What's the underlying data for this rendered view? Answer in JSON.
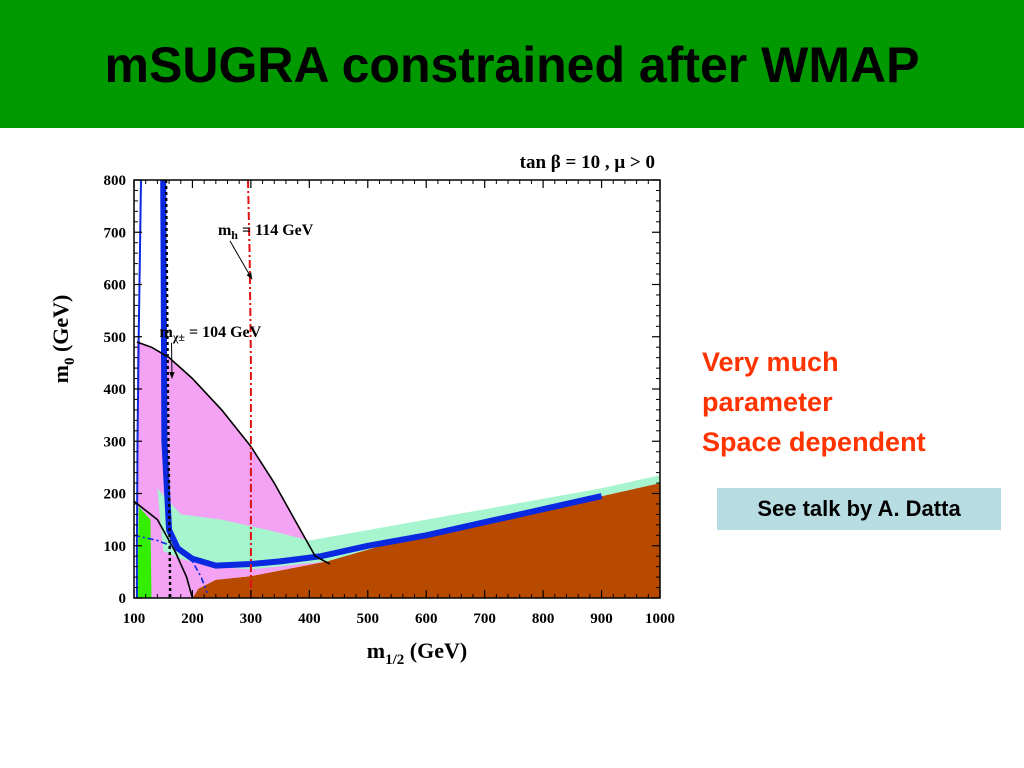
{
  "slide": {
    "title": "mSUGRA constrained after WMAP",
    "note_lines": [
      "Very much",
      "parameter",
      "Space dependent"
    ],
    "callout": "See talk by A. Datta"
  },
  "colors": {
    "header": "#009900",
    "note": "#ff3300",
    "callout_bg": "#b7dde3",
    "excluded": "#b84a00",
    "pink": "#f4a3f4",
    "mint": "#a6f5cf",
    "green": "#33ee00",
    "blue": "#0a28e0",
    "red": "#e01010"
  },
  "chart_data": {
    "type": "area",
    "title": "tan β = 10 ,  μ > 0",
    "xlabel": "m",
    "xlabel_sub": "1/2",
    "xlabel_unit": " (GeV)",
    "ylabel": "m",
    "ylabel_sub": "0",
    "ylabel_unit": " (GeV)",
    "xlim": [
      100,
      1000
    ],
    "ylim": [
      0,
      800
    ],
    "xticks": [
      100,
      200,
      300,
      400,
      500,
      600,
      700,
      800,
      900,
      1000
    ],
    "yticks": [
      0,
      100,
      200,
      300,
      400,
      500,
      600,
      700,
      800
    ],
    "regions": [
      {
        "name": "excluded-brown",
        "color": "#b84a00",
        "points": [
          [
            200,
            0
          ],
          [
            1000,
            0
          ],
          [
            1000,
            220
          ],
          [
            800,
            170
          ],
          [
            600,
            125
          ],
          [
            430,
            70
          ],
          [
            300,
            42
          ],
          [
            240,
            35
          ],
          [
            210,
            18
          ]
        ]
      },
      {
        "name": "pink-region",
        "color": "#f4a3f4",
        "points": [
          [
            105,
            490
          ],
          [
            130,
            480
          ],
          [
            160,
            460
          ],
          [
            200,
            420
          ],
          [
            250,
            360
          ],
          [
            300,
            290
          ],
          [
            340,
            220
          ],
          [
            380,
            140
          ],
          [
            410,
            80
          ],
          [
            430,
            70
          ],
          [
            300,
            42
          ],
          [
            240,
            35
          ],
          [
            210,
            18
          ],
          [
            200,
            0
          ],
          [
            130,
            0
          ],
          [
            108,
            0
          ]
        ]
      },
      {
        "name": "mint-band",
        "color": "#a6f5cf",
        "points": [
          [
            140,
            210
          ],
          [
            180,
            160
          ],
          [
            250,
            150
          ],
          [
            330,
            130
          ],
          [
            400,
            110
          ],
          [
            500,
            130
          ],
          [
            600,
            150
          ],
          [
            700,
            170
          ],
          [
            800,
            190
          ],
          [
            900,
            210
          ],
          [
            1000,
            235
          ],
          [
            1000,
            220
          ],
          [
            800,
            170
          ],
          [
            600,
            125
          ],
          [
            430,
            70
          ],
          [
            300,
            55
          ],
          [
            230,
            60
          ],
          [
            180,
            75
          ],
          [
            150,
            90
          ]
        ]
      },
      {
        "name": "green-strip",
        "color": "#33ee00",
        "points": [
          [
            106,
            0
          ],
          [
            130,
            0
          ],
          [
            128,
            150
          ],
          [
            108,
            175
          ]
        ]
      }
    ],
    "curves": [
      {
        "name": "blue-band-curve",
        "color": "#0a28e0",
        "width": 6,
        "dash": "",
        "points": [
          [
            150,
            800
          ],
          [
            152,
            300
          ],
          [
            160,
            130
          ],
          [
            175,
            95
          ],
          [
            200,
            75
          ],
          [
            240,
            62
          ],
          [
            300,
            65
          ],
          [
            350,
            70
          ],
          [
            420,
            80
          ],
          [
            500,
            100
          ],
          [
            600,
            120
          ],
          [
            700,
            145
          ],
          [
            800,
            170
          ],
          [
            900,
            195
          ]
        ]
      },
      {
        "name": "blue-left-curve",
        "color": "#0a28e0",
        "width": 2,
        "dash": "",
        "points": [
          [
            112,
            800
          ],
          [
            108,
            500
          ],
          [
            106,
            300
          ],
          [
            105,
            100
          ],
          [
            105,
            0
          ]
        ]
      },
      {
        "name": "black-contour",
        "color": "#000000",
        "width": 1.6,
        "dash": "",
        "points": [
          [
            105,
            490
          ],
          [
            130,
            480
          ],
          [
            160,
            460
          ],
          [
            200,
            420
          ],
          [
            250,
            360
          ],
          [
            300,
            290
          ],
          [
            340,
            220
          ],
          [
            380,
            140
          ],
          [
            410,
            80
          ],
          [
            435,
            65
          ]
        ]
      },
      {
        "name": "black-lower-curve",
        "color": "#000000",
        "width": 1.6,
        "dash": "",
        "points": [
          [
            100,
            185
          ],
          [
            140,
            150
          ],
          [
            170,
            90
          ],
          [
            190,
            40
          ],
          [
            200,
            0
          ]
        ]
      },
      {
        "name": "black-dotted-line",
        "color": "#000000",
        "width": 2.4,
        "dash": "3,3",
        "points": [
          [
            155,
            800
          ],
          [
            158,
            400
          ],
          [
            160,
            200
          ],
          [
            162,
            0
          ]
        ]
      },
      {
        "name": "blue-dashdot-curve",
        "color": "#0a28e0",
        "width": 1.6,
        "dash": "6,3,2,3",
        "points": [
          [
            100,
            120
          ],
          [
            140,
            110
          ],
          [
            175,
            95
          ],
          [
            200,
            70
          ],
          [
            215,
            40
          ],
          [
            225,
            10
          ]
        ]
      },
      {
        "name": "red-mh-line",
        "color": "#e01010",
        "width": 2,
        "dash": "8,3,2,3",
        "points": [
          [
            295,
            800
          ],
          [
            298,
            650
          ],
          [
            300,
            450
          ],
          [
            300,
            300
          ],
          [
            300,
            0
          ]
        ]
      }
    ],
    "annotations": [
      {
        "name": "mh-label",
        "text": "m",
        "sub": "h",
        "rest": "  = 114 GeV",
        "x": 295,
        "y": 695,
        "arrow_to": [
          302,
          610
        ]
      },
      {
        "name": "mchi-label",
        "text": "m",
        "sub": "χ±",
        "rest": " = 104 GeV",
        "x": 195,
        "y": 500,
        "arrow_to": [
          165,
          420
        ]
      }
    ]
  }
}
